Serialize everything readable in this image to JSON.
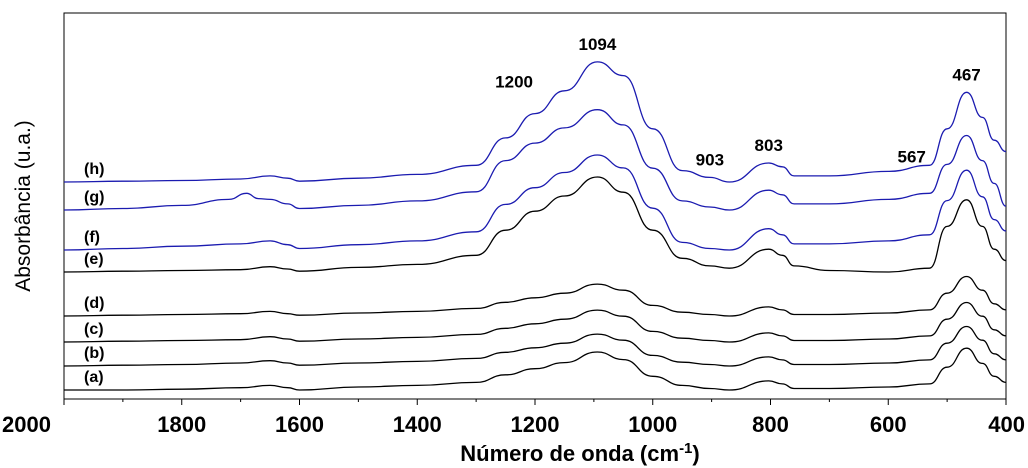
{
  "chart_data": {
    "type": "line",
    "xlabel_main": "Número de onda (cm",
    "xlabel_sup": "-1",
    "xlabel_end": ")",
    "ylabel": "Absorbância (u.a.)",
    "xlim": [
      2000,
      400
    ],
    "x_reversed": true,
    "xticks": [
      2000,
      1800,
      1600,
      1400,
      1200,
      1000,
      800,
      600,
      400
    ],
    "grid": false,
    "peak_labels": [
      {
        "text": "1094",
        "x": 1094
      },
      {
        "text": "1200",
        "x": 1200
      },
      {
        "text": "903",
        "x": 903
      },
      {
        "text": "803",
        "x": 803
      },
      {
        "text": "567",
        "x": 567
      },
      {
        "text": "467",
        "x": 467
      }
    ],
    "series": [
      {
        "name": "(a)",
        "color": "#000000",
        "values": [
          [
            2000,
            0.0
          ],
          [
            1900,
            0.0
          ],
          [
            1800,
            0.01
          ],
          [
            1700,
            0.03
          ],
          [
            1650,
            0.06
          ],
          [
            1620,
            0.03
          ],
          [
            1600,
            0.0
          ],
          [
            1500,
            0.04
          ],
          [
            1400,
            0.06
          ],
          [
            1300,
            0.1
          ],
          [
            1250,
            0.2
          ],
          [
            1200,
            0.28
          ],
          [
            1150,
            0.36
          ],
          [
            1094,
            0.5
          ],
          [
            1050,
            0.4
          ],
          [
            1000,
            0.18
          ],
          [
            950,
            0.06
          ],
          [
            903,
            0.02
          ],
          [
            870,
            0.0
          ],
          [
            803,
            0.12
          ],
          [
            780,
            0.08
          ],
          [
            760,
            0.02
          ],
          [
            700,
            0.02
          ],
          [
            600,
            0.04
          ],
          [
            530,
            0.08
          ],
          [
            500,
            0.3
          ],
          [
            467,
            0.55
          ],
          [
            440,
            0.35
          ],
          [
            420,
            0.18
          ],
          [
            400,
            0.1
          ]
        ]
      },
      {
        "name": "(b)",
        "color": "#000000",
        "values": [
          [
            2000,
            0.0
          ],
          [
            1900,
            0.01
          ],
          [
            1800,
            0.02
          ],
          [
            1700,
            0.04
          ],
          [
            1650,
            0.07
          ],
          [
            1620,
            0.04
          ],
          [
            1600,
            0.01
          ],
          [
            1500,
            0.04
          ],
          [
            1400,
            0.06
          ],
          [
            1300,
            0.1
          ],
          [
            1250,
            0.18
          ],
          [
            1200,
            0.24
          ],
          [
            1150,
            0.3
          ],
          [
            1094,
            0.42
          ],
          [
            1050,
            0.34
          ],
          [
            1000,
            0.14
          ],
          [
            950,
            0.05
          ],
          [
            903,
            0.02
          ],
          [
            870,
            0.0
          ],
          [
            803,
            0.12
          ],
          [
            780,
            0.08
          ],
          [
            760,
            0.02
          ],
          [
            700,
            0.02
          ],
          [
            600,
            0.04
          ],
          [
            530,
            0.08
          ],
          [
            500,
            0.3
          ],
          [
            467,
            0.52
          ],
          [
            440,
            0.34
          ],
          [
            420,
            0.16
          ],
          [
            400,
            0.08
          ]
        ]
      },
      {
        "name": "(c)",
        "color": "#000000",
        "values": [
          [
            2000,
            0.0
          ],
          [
            1900,
            0.01
          ],
          [
            1800,
            0.02
          ],
          [
            1700,
            0.03
          ],
          [
            1650,
            0.07
          ],
          [
            1620,
            0.04
          ],
          [
            1600,
            0.01
          ],
          [
            1500,
            0.04
          ],
          [
            1400,
            0.06
          ],
          [
            1300,
            0.1
          ],
          [
            1250,
            0.18
          ],
          [
            1200,
            0.24
          ],
          [
            1150,
            0.3
          ],
          [
            1094,
            0.42
          ],
          [
            1050,
            0.34
          ],
          [
            1000,
            0.14
          ],
          [
            950,
            0.05
          ],
          [
            903,
            0.02
          ],
          [
            870,
            0.0
          ],
          [
            803,
            0.12
          ],
          [
            780,
            0.08
          ],
          [
            760,
            0.02
          ],
          [
            700,
            0.02
          ],
          [
            600,
            0.04
          ],
          [
            530,
            0.08
          ],
          [
            500,
            0.3
          ],
          [
            467,
            0.52
          ],
          [
            440,
            0.34
          ],
          [
            420,
            0.16
          ],
          [
            400,
            0.08
          ]
        ]
      },
      {
        "name": "(d)",
        "color": "#000000",
        "values": [
          [
            2000,
            0.0
          ],
          [
            1900,
            0.01
          ],
          [
            1800,
            0.02
          ],
          [
            1700,
            0.03
          ],
          [
            1650,
            0.06
          ],
          [
            1620,
            0.03
          ],
          [
            1600,
            0.01
          ],
          [
            1500,
            0.04
          ],
          [
            1400,
            0.06
          ],
          [
            1300,
            0.1
          ],
          [
            1250,
            0.18
          ],
          [
            1200,
            0.24
          ],
          [
            1150,
            0.3
          ],
          [
            1094,
            0.42
          ],
          [
            1050,
            0.34
          ],
          [
            1000,
            0.14
          ],
          [
            950,
            0.05
          ],
          [
            903,
            0.02
          ],
          [
            870,
            0.0
          ],
          [
            803,
            0.12
          ],
          [
            780,
            0.08
          ],
          [
            760,
            0.02
          ],
          [
            700,
            0.02
          ],
          [
            600,
            0.04
          ],
          [
            530,
            0.08
          ],
          [
            500,
            0.3
          ],
          [
            467,
            0.52
          ],
          [
            440,
            0.34
          ],
          [
            420,
            0.16
          ],
          [
            400,
            0.08
          ]
        ]
      },
      {
        "name": "(e)",
        "color": "#000000",
        "values": [
          [
            2000,
            0.0
          ],
          [
            1900,
            0.01
          ],
          [
            1800,
            0.02
          ],
          [
            1700,
            0.03
          ],
          [
            1650,
            0.07
          ],
          [
            1620,
            0.04
          ],
          [
            1600,
            0.01
          ],
          [
            1500,
            0.06
          ],
          [
            1400,
            0.1
          ],
          [
            1300,
            0.22
          ],
          [
            1250,
            0.55
          ],
          [
            1200,
            0.8
          ],
          [
            1150,
            1.0
          ],
          [
            1094,
            1.25
          ],
          [
            1050,
            1.05
          ],
          [
            1000,
            0.55
          ],
          [
            950,
            0.18
          ],
          [
            903,
            0.08
          ],
          [
            870,
            0.05
          ],
          [
            803,
            0.3
          ],
          [
            780,
            0.22
          ],
          [
            760,
            0.08
          ],
          [
            700,
            0.02
          ],
          [
            600,
            0.0
          ],
          [
            530,
            0.05
          ],
          [
            500,
            0.6
          ],
          [
            467,
            0.95
          ],
          [
            440,
            0.6
          ],
          [
            420,
            0.3
          ],
          [
            400,
            0.15
          ]
        ]
      },
      {
        "name": "(f)",
        "color": "#1b1bb0",
        "values": [
          [
            2000,
            0.0
          ],
          [
            1900,
            0.02
          ],
          [
            1800,
            0.05
          ],
          [
            1700,
            0.08
          ],
          [
            1650,
            0.12
          ],
          [
            1620,
            0.07
          ],
          [
            1600,
            0.02
          ],
          [
            1500,
            0.07
          ],
          [
            1400,
            0.12
          ],
          [
            1300,
            0.24
          ],
          [
            1250,
            0.6
          ],
          [
            1200,
            0.82
          ],
          [
            1150,
            1.02
          ],
          [
            1094,
            1.25
          ],
          [
            1050,
            1.08
          ],
          [
            1000,
            0.55
          ],
          [
            950,
            0.1
          ],
          [
            903,
            0.02
          ],
          [
            870,
            0.0
          ],
          [
            803,
            0.28
          ],
          [
            780,
            0.2
          ],
          [
            760,
            0.08
          ],
          [
            700,
            0.08
          ],
          [
            600,
            0.12
          ],
          [
            530,
            0.2
          ],
          [
            500,
            0.65
          ],
          [
            467,
            1.05
          ],
          [
            440,
            0.7
          ],
          [
            420,
            0.4
          ],
          [
            400,
            0.25
          ]
        ]
      },
      {
        "name": "(g)",
        "color": "#1b1bb0",
        "values": [
          [
            2000,
            0.0
          ],
          [
            1900,
            0.02
          ],
          [
            1800,
            0.06
          ],
          [
            1720,
            0.14
          ],
          [
            1690,
            0.22
          ],
          [
            1670,
            0.15
          ],
          [
            1650,
            0.14
          ],
          [
            1620,
            0.08
          ],
          [
            1600,
            0.02
          ],
          [
            1500,
            0.06
          ],
          [
            1400,
            0.12
          ],
          [
            1300,
            0.24
          ],
          [
            1250,
            0.65
          ],
          [
            1200,
            0.88
          ],
          [
            1150,
            1.08
          ],
          [
            1094,
            1.32
          ],
          [
            1050,
            1.12
          ],
          [
            1000,
            0.55
          ],
          [
            950,
            0.12
          ],
          [
            903,
            0.04
          ],
          [
            870,
            0.0
          ],
          [
            803,
            0.26
          ],
          [
            780,
            0.2
          ],
          [
            760,
            0.08
          ],
          [
            700,
            0.08
          ],
          [
            600,
            0.14
          ],
          [
            530,
            0.22
          ],
          [
            500,
            0.6
          ],
          [
            467,
            0.98
          ],
          [
            440,
            0.65
          ],
          [
            420,
            0.35
          ],
          [
            400,
            0.05
          ]
        ]
      },
      {
        "name": "(h)",
        "color": "#1b1bb0",
        "values": [
          [
            2000,
            0.0
          ],
          [
            1900,
            0.01
          ],
          [
            1800,
            0.02
          ],
          [
            1700,
            0.04
          ],
          [
            1650,
            0.08
          ],
          [
            1620,
            0.05
          ],
          [
            1600,
            0.01
          ],
          [
            1500,
            0.05
          ],
          [
            1400,
            0.1
          ],
          [
            1300,
            0.22
          ],
          [
            1250,
            0.58
          ],
          [
            1200,
            0.9
          ],
          [
            1150,
            1.2
          ],
          [
            1094,
            1.58
          ],
          [
            1050,
            1.4
          ],
          [
            1000,
            0.7
          ],
          [
            950,
            0.15
          ],
          [
            903,
            0.06
          ],
          [
            870,
            0.0
          ],
          [
            803,
            0.25
          ],
          [
            780,
            0.2
          ],
          [
            760,
            0.08
          ],
          [
            700,
            0.08
          ],
          [
            600,
            0.14
          ],
          [
            530,
            0.22
          ],
          [
            500,
            0.7
          ],
          [
            467,
            1.18
          ],
          [
            440,
            0.85
          ],
          [
            420,
            0.55
          ],
          [
            400,
            0.4
          ]
        ]
      }
    ]
  }
}
